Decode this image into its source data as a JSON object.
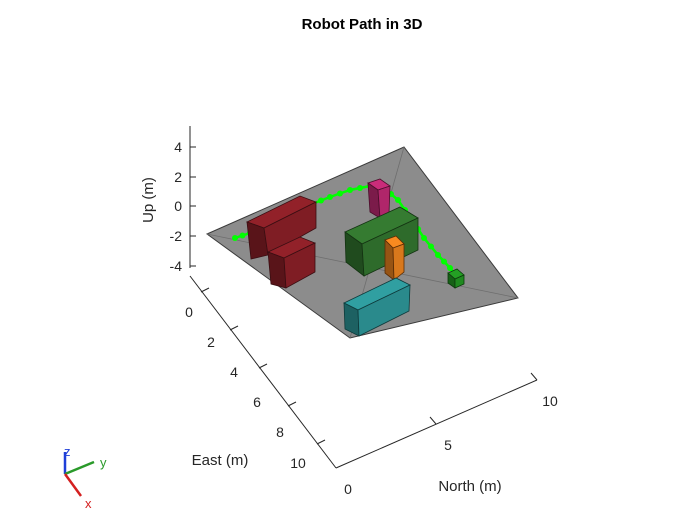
{
  "chart_data": {
    "type": "scatter3d",
    "title": "Robot Path in 3D",
    "xlabel": "North (m)",
    "ylabel": "East (m)",
    "zlabel": "Up (m)",
    "xlim": [
      0,
      10
    ],
    "ylim": [
      0,
      10
    ],
    "zlim": [
      -4,
      4
    ],
    "xticks": [
      "0",
      "5",
      "10"
    ],
    "yticks": [
      "0",
      "2",
      "4",
      "6",
      "8",
      "10"
    ],
    "zticks": [
      "4",
      "2",
      "0",
      "-2",
      "-4"
    ],
    "grid": false,
    "colors": {
      "ground": "#8c8c8c",
      "path": "#00ff00",
      "obstacle_red": "#7f1d24",
      "obstacle_green": "#2e6b2b",
      "obstacle_teal": "#2a8a8c",
      "obstacle_orange": "#d8781c",
      "obstacle_magenta": "#b0266a",
      "goal": "#1f8a1f"
    },
    "triad": {
      "x": "x",
      "y": "y",
      "z": "z"
    }
  }
}
